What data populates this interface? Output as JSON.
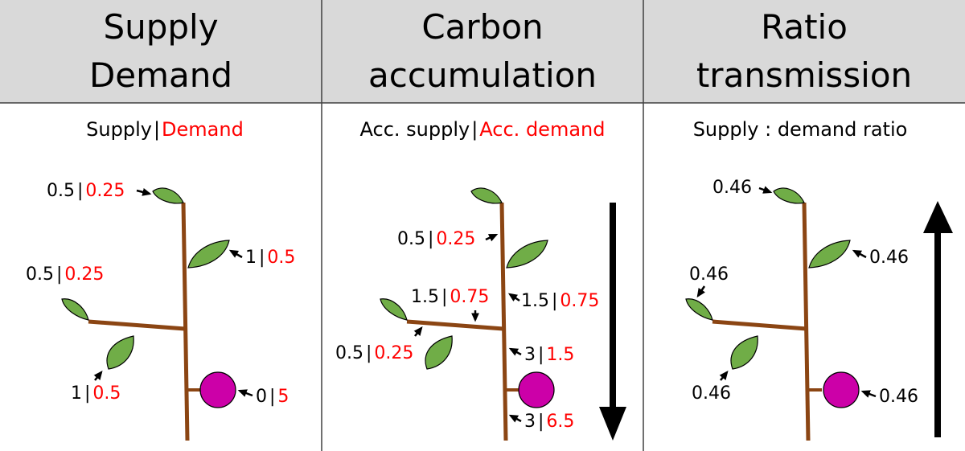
{
  "colors": {
    "header_bg": "#d9d9d9",
    "divider": "#404040",
    "stem": "#8b4513",
    "leaf": "#70ad47",
    "fruit": "#cc00a8",
    "demand": "#ff0000",
    "text": "#000000"
  },
  "headers": [
    {
      "line1": "Supply",
      "line2": "Demand"
    },
    {
      "line1": "Carbon",
      "line2": "accumulation"
    },
    {
      "line1": "Ratio",
      "line2": "transmission"
    }
  ],
  "panel1": {
    "subtitle_supply": "Supply",
    "subtitle_sep": "|",
    "subtitle_demand": "Demand",
    "labels": {
      "top_leaf": {
        "s": "0.5",
        "d": "0.25"
      },
      "upper_right_leaf": {
        "s": "1",
        "d": "0.5"
      },
      "branch_end_leaf": {
        "s": "0.5",
        "d": "0.25"
      },
      "branch_lower_leaf": {
        "s": "1",
        "d": "0.5"
      },
      "fruit": {
        "s": "0",
        "d": "5"
      }
    }
  },
  "panel2": {
    "subtitle_supply": "Acc. supply",
    "subtitle_sep": "|",
    "subtitle_demand": "Acc. demand",
    "labels": {
      "top": {
        "s": "0.5",
        "d": "0.25"
      },
      "branch": {
        "s": "1.5",
        "d": "0.75"
      },
      "stem_mid": {
        "s": "1.5",
        "d": "0.75"
      },
      "branch_lower": {
        "s": "0.5",
        "d": "0.25"
      },
      "stem_low": {
        "s": "3",
        "d": "1.5"
      },
      "stem_base": {
        "s": "3",
        "d": "6.5"
      }
    },
    "arrow_direction": "down"
  },
  "panel3": {
    "subtitle": "Supply : demand ratio",
    "labels": {
      "top_leaf": "0.46",
      "upper_right_leaf": "0.46",
      "branch_end_leaf": "0.46",
      "branch_lower_leaf": "0.46",
      "fruit": "0.46"
    },
    "arrow_direction": "up"
  }
}
